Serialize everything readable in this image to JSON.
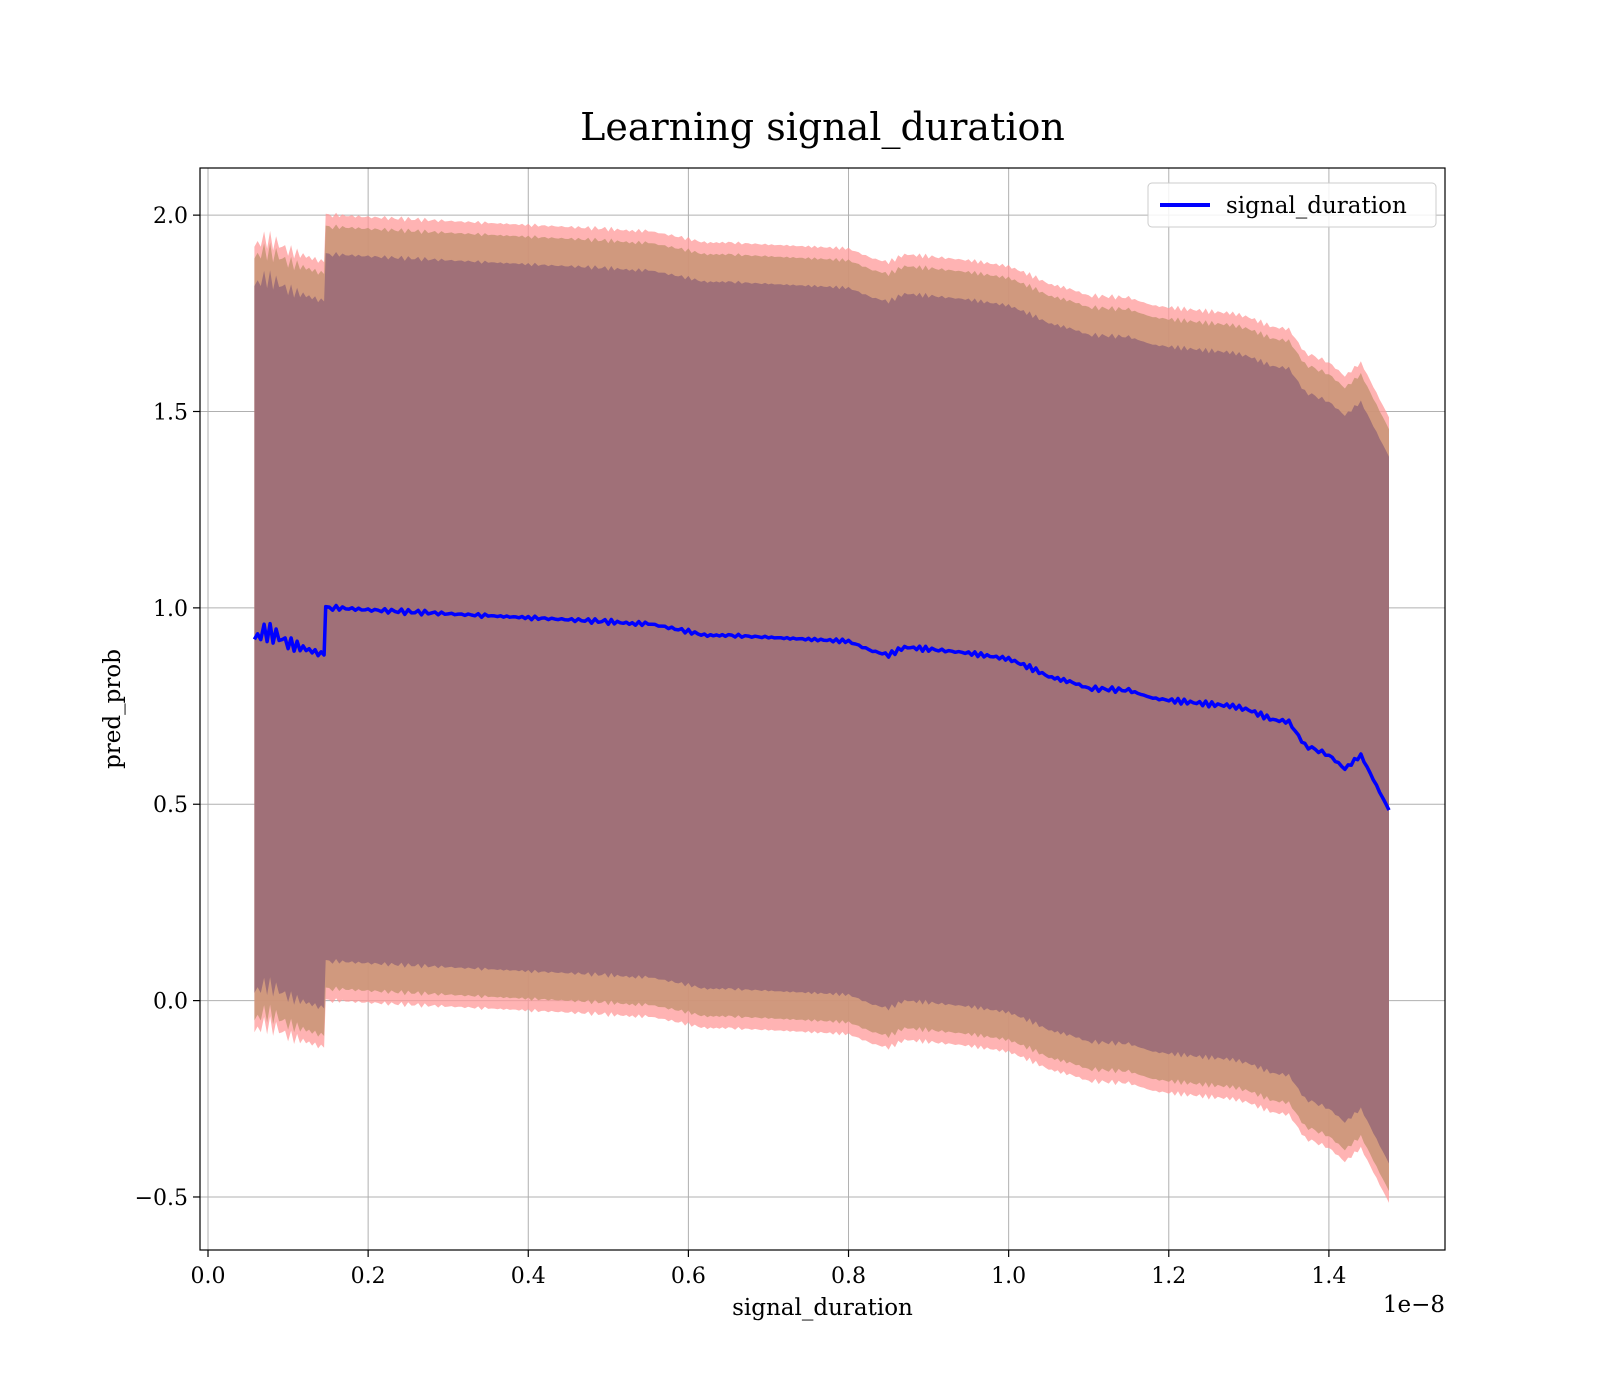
{
  "chart_data": {
    "type": "line",
    "title": "Learning signal_duration",
    "xlabel": "signal_duration",
    "ylabel": "pred_prob",
    "x_offset_label": "1e−8",
    "xlim": [
      -0.01,
      1.545
    ],
    "ylim": [
      -0.635,
      2.12
    ],
    "xticks": [
      0.0,
      0.2,
      0.4,
      0.6,
      0.8,
      1.0,
      1.2,
      1.4
    ],
    "xtick_labels": [
      "0.0",
      "0.2",
      "0.4",
      "0.6",
      "0.8",
      "1.0",
      "1.2",
      "1.4"
    ],
    "yticks": [
      -0.5,
      0.0,
      0.5,
      1.0,
      1.5,
      2.0
    ],
    "ytick_labels": [
      "−0.5",
      "0.0",
      "0.5",
      "1.0",
      "1.5",
      "2.0"
    ],
    "grid": true,
    "legend_position": "top-right",
    "colors": {
      "line": "#0000ff",
      "band_outer": "#ff9999",
      "band_middle": "#c89474",
      "band_inner": "#a07078",
      "grid": "#b0b0b0"
    },
    "series": [
      {
        "name": "signal_duration",
        "x": [
          0.058,
          0.07,
          0.085,
          0.1,
          0.115,
          0.13,
          0.145,
          0.147,
          0.16,
          0.2,
          0.25,
          0.3,
          0.35,
          0.4,
          0.45,
          0.5,
          0.53,
          0.55,
          0.6,
          0.62,
          0.65,
          0.7,
          0.75,
          0.8,
          0.83,
          0.85,
          0.87,
          0.9,
          0.95,
          1.0,
          1.03,
          1.05,
          1.08,
          1.1,
          1.15,
          1.18,
          1.2,
          1.25,
          1.28,
          1.3,
          1.33,
          1.35,
          1.37,
          1.4,
          1.42,
          1.44,
          1.475
        ],
        "y": [
          0.92,
          0.94,
          0.93,
          0.91,
          0.9,
          0.89,
          0.88,
          1.0,
          1.0,
          0.995,
          0.99,
          0.985,
          0.98,
          0.975,
          0.97,
          0.965,
          0.96,
          0.96,
          0.94,
          0.93,
          0.93,
          0.925,
          0.92,
          0.915,
          0.89,
          0.88,
          0.9,
          0.895,
          0.885,
          0.87,
          0.845,
          0.825,
          0.81,
          0.795,
          0.79,
          0.77,
          0.765,
          0.755,
          0.75,
          0.74,
          0.715,
          0.71,
          0.65,
          0.625,
          0.59,
          0.625,
          0.485
        ]
      }
    ],
    "bands": [
      {
        "name": "outer",
        "half_width": 1.0
      },
      {
        "name": "middle",
        "half_width": 0.97
      },
      {
        "name": "inner",
        "half_width": 0.9
      }
    ]
  }
}
